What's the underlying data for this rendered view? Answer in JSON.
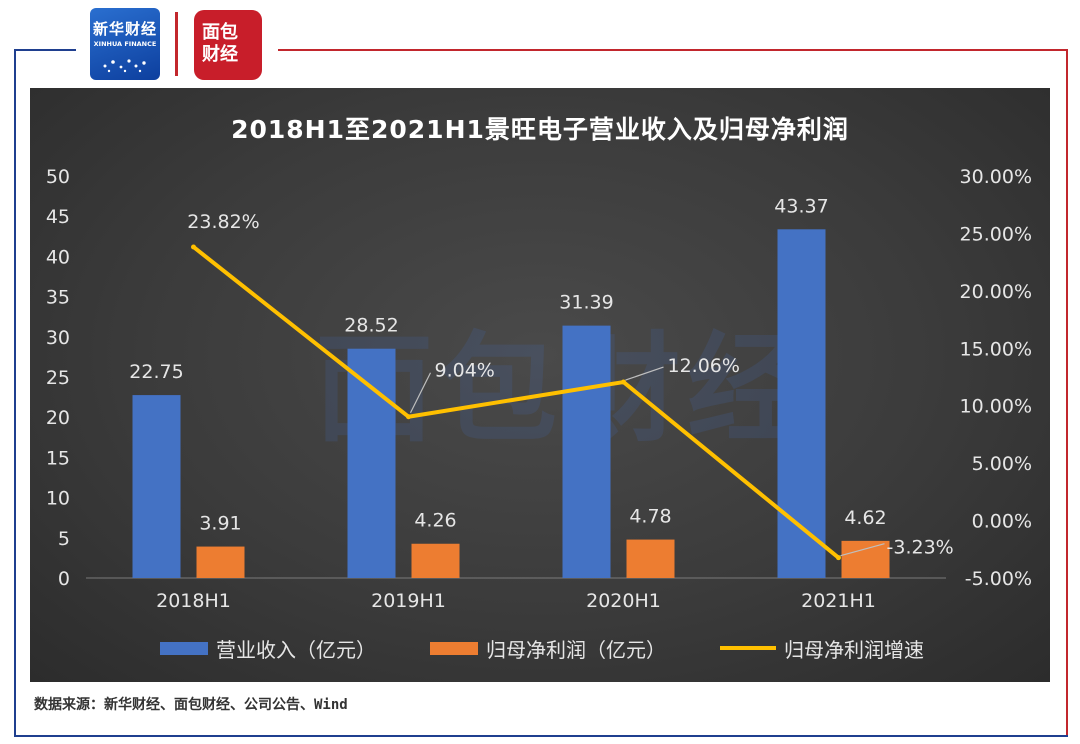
{
  "source_note": "数据来源：新华财经、面包财经、公司公告、Wind",
  "logos": {
    "xinhua_name": "新华财经",
    "xinhua_en": "XINHUA FINANCE",
    "mianbao_name": "面包财经"
  },
  "watermark": "面包财经",
  "colors": {
    "revenue": "#4472c4",
    "profit": "#ed7d31",
    "growth": "#ffc000"
  },
  "chart_data": {
    "type": "bar",
    "title": "2018H1至2021H1景旺电子营业收入及归母净利润",
    "categories": [
      "2018H1",
      "2019H1",
      "2020H1",
      "2021H1"
    ],
    "series": [
      {
        "name": "营业收入（亿元）",
        "axis": "left",
        "values": [
          22.75,
          28.52,
          31.39,
          43.37
        ],
        "labels": [
          "22.75",
          "28.52",
          "31.39",
          "43.37"
        ]
      },
      {
        "name": "归母净利润（亿元）",
        "axis": "left",
        "values": [
          3.91,
          4.26,
          4.78,
          4.62
        ],
        "labels": [
          "3.91",
          "4.26",
          "4.78",
          "4.62"
        ]
      },
      {
        "name": "归母净利润增速",
        "axis": "right",
        "type": "line",
        "values": [
          23.82,
          9.04,
          12.06,
          -3.23
        ],
        "labels": [
          "23.82%",
          "9.04%",
          "12.06%",
          "-3.23%"
        ]
      }
    ],
    "left_axis": {
      "ylim": [
        0,
        50
      ],
      "ticks": [
        "0",
        "5",
        "10",
        "15",
        "20",
        "25",
        "30",
        "35",
        "40",
        "45",
        "50"
      ]
    },
    "right_axis": {
      "ylim": [
        -5,
        30
      ],
      "ticks": [
        "-5.00%",
        "0.00%",
        "5.00%",
        "10.00%",
        "15.00%",
        "20.00%",
        "25.00%",
        "30.00%"
      ]
    },
    "legend_position": "bottom",
    "grid": false
  }
}
